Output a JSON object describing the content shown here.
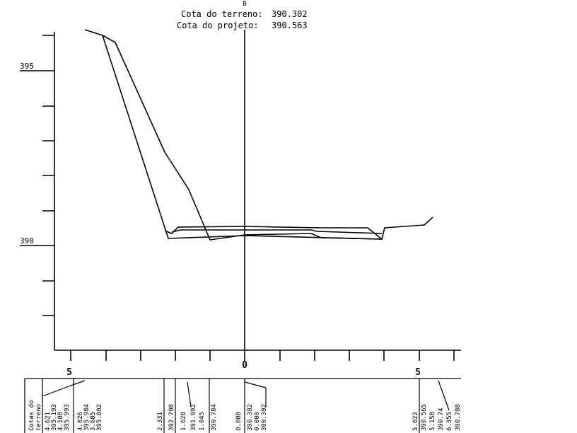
{
  "header": {
    "section_letter": "B",
    "terrain_label": "Cota do terreno:",
    "terrain_value": "390.302",
    "project_label": "Cota do projeto:",
    "project_value": "390.563"
  },
  "y_axis": {
    "labels": [
      "395",
      "390"
    ]
  },
  "x_axis": {
    "labels": [
      "5",
      "0",
      "5"
    ]
  },
  "profile": {
    "description": "cross-section outlines"
  },
  "table": {
    "left_header_lines": [
      "Cotas do",
      "terreno"
    ],
    "columns": [
      {
        "id": "c1",
        "lines": [
          "4.621",
          "395.193",
          "4.108",
          "395.993"
        ]
      },
      {
        "id": "c2",
        "lines": [
          "4.026",
          "395.984",
          "3.685",
          "395.802"
        ]
      },
      {
        "id": "c3",
        "lines": [
          "2.331",
          "392.708"
        ]
      },
      {
        "id": "c4",
        "lines": [
          "1.628",
          "391.992"
        ]
      },
      {
        "id": "c5",
        "lines": [
          "1.045",
          "390.784"
        ]
      },
      {
        "id": "c6",
        "lines": [
          "0.000",
          "390.302"
        ]
      },
      {
        "id": "c7",
        "lines": [
          "0.000",
          "390.302"
        ]
      },
      {
        "id": "c8",
        "lines": [
          "5.022",
          "390.565"
        ]
      },
      {
        "id": "c9",
        "lines": [
          "5.158",
          "390.74"
        ]
      },
      {
        "id": "c10",
        "lines": [
          "6.355",
          "390.788"
        ]
      }
    ]
  }
}
